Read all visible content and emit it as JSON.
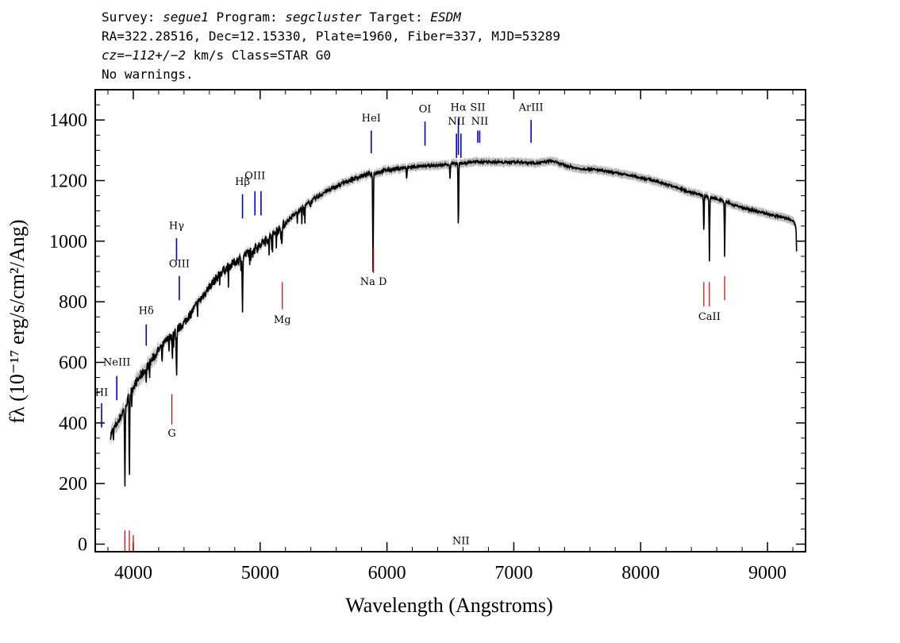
{
  "header": {
    "survey_label": "Survey:",
    "survey": "segue1",
    "program_label": "Program:",
    "program": "segcluster",
    "target_label": "Target:",
    "target": "ESDM",
    "line2": "RA=322.28516, Dec=12.15330, Plate=1960, Fiber=337, MJD=53289",
    "cz": "cz=−112+/−2",
    "cz_rest": " km/s Class=STAR G0",
    "warnings": "No warnings."
  },
  "chart_data": {
    "type": "line",
    "xlabel": "Wavelength (Angstroms)",
    "ylabel": "fλ (10⁻¹⁷ erg/s/cm²/Ang)",
    "xlim": [
      3700,
      9300
    ],
    "ylim": [
      -25,
      1500
    ],
    "x_ticks": [
      4000,
      5000,
      6000,
      7000,
      8000,
      9000
    ],
    "y_ticks": [
      0,
      200,
      400,
      600,
      800,
      1000,
      1200,
      1400
    ],
    "continuum_points": [
      [
        3820,
        360
      ],
      [
        3900,
        420
      ],
      [
        4000,
        520
      ],
      [
        4100,
        580
      ],
      [
        4200,
        640
      ],
      [
        4300,
        690
      ],
      [
        4400,
        730
      ],
      [
        4500,
        790
      ],
      [
        4600,
        850
      ],
      [
        4700,
        900
      ],
      [
        4800,
        930
      ],
      [
        4900,
        960
      ],
      [
        5000,
        990
      ],
      [
        5100,
        1020
      ],
      [
        5200,
        1060
      ],
      [
        5300,
        1100
      ],
      [
        5400,
        1130
      ],
      [
        5500,
        1160
      ],
      [
        5600,
        1180
      ],
      [
        5700,
        1200
      ],
      [
        5800,
        1215
      ],
      [
        5900,
        1225
      ],
      [
        6000,
        1235
      ],
      [
        6100,
        1240
      ],
      [
        6200,
        1245
      ],
      [
        6300,
        1248
      ],
      [
        6400,
        1250
      ],
      [
        6500,
        1255
      ],
      [
        6600,
        1258
      ],
      [
        6700,
        1262
      ],
      [
        6800,
        1262
      ],
      [
        6900,
        1260
      ],
      [
        7000,
        1262
      ],
      [
        7100,
        1260
      ],
      [
        7200,
        1258
      ],
      [
        7300,
        1265
      ],
      [
        7400,
        1250
      ],
      [
        7500,
        1240
      ],
      [
        7600,
        1238
      ],
      [
        7700,
        1232
      ],
      [
        7800,
        1225
      ],
      [
        7900,
        1218
      ],
      [
        8000,
        1210
      ],
      [
        8100,
        1200
      ],
      [
        8200,
        1188
      ],
      [
        8300,
        1175
      ],
      [
        8400,
        1160
      ],
      [
        8500,
        1150
      ],
      [
        8600,
        1140
      ],
      [
        8700,
        1125
      ],
      [
        8800,
        1110
      ],
      [
        8900,
        1100
      ],
      [
        9000,
        1090
      ],
      [
        9100,
        1080
      ],
      [
        9200,
        1070
      ],
      [
        9230,
        1040
      ]
    ],
    "absorption_lines": [
      {
        "x": 3934,
        "depth": 260
      },
      {
        "x": 3969,
        "depth": 230
      },
      {
        "x": 4102,
        "depth": 40
      },
      {
        "x": 4227,
        "depth": 50
      },
      {
        "x": 4308,
        "depth": 90
      },
      {
        "x": 4341,
        "depth": 150
      },
      {
        "x": 4861,
        "depth": 190
      },
      {
        "x": 5172,
        "depth": 60
      },
      {
        "x": 5890,
        "depth": 320
      },
      {
        "x": 6155,
        "depth": 40
      },
      {
        "x": 6497,
        "depth": 50
      },
      {
        "x": 6563,
        "depth": 220
      },
      {
        "x": 8498,
        "depth": 120
      },
      {
        "x": 8542,
        "depth": 210
      },
      {
        "x": 8662,
        "depth": 180
      },
      {
        "x": 9230,
        "depth": 80
      }
    ],
    "emission_labels": [
      {
        "label": "HI",
        "x": 3750,
        "line_top": 465,
        "line_bottom": 385,
        "label_y": 490
      },
      {
        "label": "NeIII",
        "x": 3870,
        "line_top": 555,
        "line_bottom": 475,
        "label_y": 590
      },
      {
        "label": "Hδ",
        "x": 4102,
        "line_top": 725,
        "line_bottom": 655,
        "label_y": 760
      },
      {
        "label": "Hγ",
        "x": 4341,
        "line_top": 1010,
        "line_bottom": 935,
        "label_y": 1040
      },
      {
        "label": "OIII",
        "x": 4363,
        "line_top": 885,
        "line_bottom": 805,
        "label_y": 915
      },
      {
        "label": "Hβ",
        "x": 4861,
        "line_top": 1155,
        "line_bottom": 1075,
        "label_y": 1185
      },
      {
        "label": "OIII",
        "x": 4959,
        "line_top": 1165,
        "line_bottom": 1085,
        "label_y": 1205
      },
      {
        "label": "",
        "x": 5007,
        "line_top": 1165,
        "line_bottom": 1085,
        "label_y": 0
      },
      {
        "label": "HeI",
        "x": 5876,
        "line_top": 1365,
        "line_bottom": 1290,
        "label_y": 1395
      },
      {
        "label": "OI",
        "x": 6300,
        "line_top": 1395,
        "line_bottom": 1315,
        "label_y": 1425
      },
      {
        "label": "NII",
        "x": 6548,
        "line_top": 1355,
        "line_bottom": 1275,
        "label_y": 1385
      },
      {
        "label": "Hα",
        "x": 6563,
        "line_top": 1405,
        "line_bottom": 1285,
        "label_y": 1430
      },
      {
        "label": "NII",
        "x": 6583,
        "line_top": 1355,
        "line_bottom": 1275,
        "label_y": 0
      },
      {
        "label": "SII",
        "x": 6716,
        "line_top": 1365,
        "line_bottom": 1325,
        "label_y": 1430
      },
      {
        "label": "NII",
        "x": 6731,
        "line_top": 1365,
        "line_bottom": 1325,
        "label_y": 1385
      },
      {
        "label": "ArIII",
        "x": 7136,
        "line_top": 1400,
        "line_bottom": 1325,
        "label_y": 1430
      }
    ],
    "absorption_labels": [
      {
        "label": "G",
        "x": 4304,
        "line_top": 495,
        "line_bottom": 395,
        "label_y": 355
      },
      {
        "label": "Mg",
        "x": 5175,
        "line_top": 865,
        "line_bottom": 775,
        "label_y": 730
      },
      {
        "label": "Na D",
        "x": 5894,
        "line_top": 980,
        "line_bottom": 895,
        "label_y": 855
      },
      {
        "label": "CaII",
        "x": 8542,
        "line_top": 865,
        "line_bottom": 785,
        "label_y": 740
      },
      {
        "label": "",
        "x": 8498,
        "line_top": 865,
        "line_bottom": 785,
        "label_y": 0
      },
      {
        "label": "",
        "x": 8662,
        "line_top": 885,
        "line_bottom": 805,
        "label_y": 0
      },
      {
        "label": "",
        "x": 3934,
        "line_top": 45,
        "line_bottom": -25,
        "label_y": 0
      },
      {
        "label": "",
        "x": 3969,
        "line_top": 45,
        "line_bottom": -25,
        "label_y": 0
      },
      {
        "label": "",
        "x": 4000,
        "line_top": 30,
        "line_bottom": -25,
        "label_y": 0
      }
    ],
    "colors": {
      "spectrum": "#000000",
      "error": "#bbbbbb",
      "emission": "#0000cc",
      "absorption": "#cc0000"
    }
  }
}
